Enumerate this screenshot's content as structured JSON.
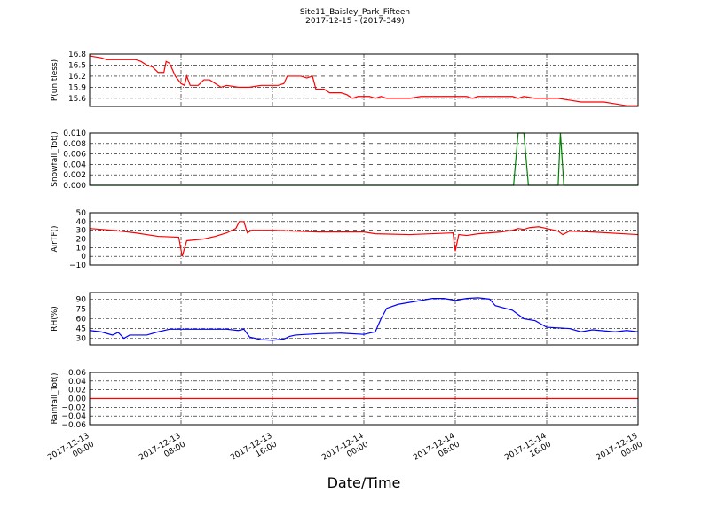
{
  "chart_data": [
    {
      "type": "line",
      "title": "Site11_Baisley_Park_Fifteen",
      "subtitle": "2017-12-15 - (2017-349)",
      "ylabel": "P(unitless)",
      "color": "#ff0000",
      "grid": true,
      "xlim": [
        "2017-12-13 00:00",
        "2017-12-15 00:00"
      ],
      "ylim": [
        15.38,
        16.8
      ],
      "yticks": [
        15.6,
        15.9,
        16.2,
        16.5,
        16.8
      ],
      "x": [
        "2017-12-13 00:00",
        "2017-12-13 01:00",
        "2017-12-13 01:30",
        "2017-12-13 04:00",
        "2017-12-13 04:30",
        "2017-12-13 05:00",
        "2017-12-13 05:30",
        "2017-12-13 06:00",
        "2017-12-13 06:30",
        "2017-12-13 06:42",
        "2017-12-13 07:00",
        "2017-12-13 07:30",
        "2017-12-13 08:00",
        "2017-12-13 08:18",
        "2017-12-13 08:30",
        "2017-12-13 08:48",
        "2017-12-13 09:30",
        "2017-12-13 10:00",
        "2017-12-13 10:30",
        "2017-12-13 11:00",
        "2017-12-13 11:30",
        "2017-12-13 12:00",
        "2017-12-13 13:00",
        "2017-12-13 14:00",
        "2017-12-13 15:00",
        "2017-12-13 16:30",
        "2017-12-13 17:00",
        "2017-12-13 17:18",
        "2017-12-13 18:30",
        "2017-12-13 19:00",
        "2017-12-13 19:30",
        "2017-12-13 19:48",
        "2017-12-13 20:30",
        "2017-12-13 21:00",
        "2017-12-13 22:00",
        "2017-12-13 22:30",
        "2017-12-13 23:00",
        "2017-12-13 23:30",
        "2017-12-14 00:30",
        "2017-12-14 01:00",
        "2017-12-14 01:30",
        "2017-12-14 02:00",
        "2017-12-14 04:00",
        "2017-12-14 05:00",
        "2017-12-14 09:00",
        "2017-12-14 09:30",
        "2017-12-14 10:00",
        "2017-12-14 13:00",
        "2017-12-14 13:30",
        "2017-12-14 14:00",
        "2017-12-14 15:00",
        "2017-12-14 17:00",
        "2017-12-14 18:00",
        "2017-12-14 19:00",
        "2017-12-14 21:00",
        "2017-12-14 22:00",
        "2017-12-14 23:00",
        "2017-12-15 00:00"
      ],
      "values": [
        16.75,
        16.7,
        16.65,
        16.65,
        16.6,
        16.5,
        16.45,
        16.3,
        16.3,
        16.6,
        16.55,
        16.2,
        16.0,
        15.95,
        16.2,
        15.95,
        15.95,
        16.1,
        16.1,
        16.0,
        15.9,
        15.95,
        15.9,
        15.9,
        15.95,
        15.95,
        16.0,
        16.2,
        16.2,
        16.15,
        16.2,
        15.85,
        15.85,
        15.75,
        15.75,
        15.7,
        15.6,
        15.65,
        15.65,
        15.6,
        15.65,
        15.6,
        15.6,
        15.65,
        15.65,
        15.6,
        15.65,
        15.65,
        15.6,
        15.65,
        15.6,
        15.6,
        15.55,
        15.5,
        15.5,
        15.45,
        15.4,
        15.4
      ]
    },
    {
      "type": "line",
      "ylabel": "Snowfall_Tot()",
      "color": "#008000",
      "grid": true,
      "xlim": [
        "2017-12-13 00:00",
        "2017-12-15 00:00"
      ],
      "ylim": [
        0,
        0.01
      ],
      "yticks": [
        {
          "value": 0,
          "label": "0.000"
        },
        {
          "value": 0.002,
          "label": "0.002"
        },
        {
          "value": 0.004,
          "label": "0.004"
        },
        {
          "value": 0.006,
          "label": "0.006"
        },
        {
          "value": 0.008,
          "label": "0.008"
        },
        {
          "value": 0.01,
          "label": "0.010"
        }
      ],
      "x": [
        "2017-12-13 00:00",
        "2017-12-14 13:06",
        "2017-12-14 13:30",
        "2017-12-14 14:00",
        "2017-12-14 14:24",
        "2017-12-14 17:00",
        "2017-12-14 17:12",
        "2017-12-14 17:30",
        "2017-12-15 00:00"
      ],
      "values": [
        0,
        0,
        0.01,
        0.01,
        0,
        0,
        0.01,
        0,
        0
      ]
    },
    {
      "type": "line",
      "ylabel": "AirTF()",
      "color": "#ff0000",
      "grid": true,
      "xlim": [
        "2017-12-13 00:00",
        "2017-12-15 00:00"
      ],
      "ylim": [
        -10,
        50
      ],
      "yticks": [
        {
          "value": -10,
          "label": "−10"
        },
        0,
        10,
        20,
        30,
        40,
        50
      ],
      "x": [
        "2017-12-13 00:00",
        "2017-12-13 02:00",
        "2017-12-13 04:00",
        "2017-12-13 06:00",
        "2017-12-13 07:48",
        "2017-12-13 08:06",
        "2017-12-13 08:30",
        "2017-12-13 10:00",
        "2017-12-13 11:00",
        "2017-12-13 12:00",
        "2017-12-13 12:48",
        "2017-12-13 13:06",
        "2017-12-13 13:30",
        "2017-12-13 13:48",
        "2017-12-13 14:12",
        "2017-12-13 16:00",
        "2017-12-13 18:00",
        "2017-12-13 20:00",
        "2017-12-14 00:00",
        "2017-12-14 01:00",
        "2017-12-14 04:00",
        "2017-12-14 07:48",
        "2017-12-14 08:00",
        "2017-12-14 08:18",
        "2017-12-14 09:00",
        "2017-12-14 10:00",
        "2017-12-14 12:00",
        "2017-12-14 13:00",
        "2017-12-14 13:30",
        "2017-12-14 14:00",
        "2017-12-14 14:30",
        "2017-12-14 15:18",
        "2017-12-14 16:00",
        "2017-12-14 17:00",
        "2017-12-14 17:24",
        "2017-12-14 18:00",
        "2017-12-14 20:00",
        "2017-12-15 00:00"
      ],
      "values": [
        32,
        30,
        27,
        23,
        22,
        0,
        18,
        20,
        23,
        27,
        32,
        40,
        40,
        27,
        30,
        30,
        29,
        28,
        28,
        26,
        25,
        27,
        6,
        25,
        24,
        26,
        28,
        30,
        32,
        31,
        33,
        34,
        32,
        29,
        25,
        29,
        28,
        25
      ]
    },
    {
      "type": "line",
      "ylabel": "RH(%)",
      "color": "#0000ff",
      "grid": true,
      "xlim": [
        "2017-12-13 00:00",
        "2017-12-15 00:00"
      ],
      "ylim": [
        20,
        100
      ],
      "yticks": [
        30,
        45,
        60,
        75,
        90
      ],
      "x": [
        "2017-12-13 00:00",
        "2017-12-13 01:00",
        "2017-12-13 02:00",
        "2017-12-13 02:30",
        "2017-12-13 03:00",
        "2017-12-13 03:30",
        "2017-12-13 05:00",
        "2017-12-13 06:00",
        "2017-12-13 07:00",
        "2017-12-13 08:00",
        "2017-12-13 10:00",
        "2017-12-13 12:00",
        "2017-12-13 13:00",
        "2017-12-13 13:30",
        "2017-12-13 14:00",
        "2017-12-13 15:00",
        "2017-12-13 16:00",
        "2017-12-13 17:00",
        "2017-12-13 17:30",
        "2017-12-13 18:00",
        "2017-12-13 20:00",
        "2017-12-13 22:00",
        "2017-12-14 00:00",
        "2017-12-14 01:00",
        "2017-12-14 01:30",
        "2017-12-14 02:00",
        "2017-12-14 03:00",
        "2017-12-14 05:00",
        "2017-12-14 06:00",
        "2017-12-14 07:00",
        "2017-12-14 08:00",
        "2017-12-14 09:00",
        "2017-12-14 10:00",
        "2017-12-14 11:00",
        "2017-12-14 11:30",
        "2017-12-14 13:00",
        "2017-12-14 14:00",
        "2017-12-14 15:00",
        "2017-12-14 16:00",
        "2017-12-14 18:00",
        "2017-12-14 19:00",
        "2017-12-14 20:00",
        "2017-12-14 22:00",
        "2017-12-14 23:00",
        "2017-12-15 00:00"
      ],
      "values": [
        42,
        40,
        35,
        39,
        30,
        35,
        35,
        40,
        44,
        44,
        44,
        44,
        42,
        44,
        32,
        28,
        27,
        29,
        33,
        35,
        37,
        38,
        36,
        40,
        60,
        76,
        82,
        88,
        91,
        91,
        88,
        91,
        92,
        90,
        80,
        73,
        60,
        57,
        47,
        45,
        40,
        43,
        40,
        42,
        40
      ]
    },
    {
      "type": "line",
      "ylabel": "Rainfall_Tot()",
      "xlabel": "Date/Time",
      "color": "#ff0000",
      "grid": true,
      "xlim": [
        "2017-12-13 00:00",
        "2017-12-15 00:00"
      ],
      "ylim": [
        -0.06,
        0.06
      ],
      "yticks": [
        {
          "value": -0.06,
          "label": "−0.06"
        },
        {
          "value": -0.04,
          "label": "−0.04"
        },
        {
          "value": -0.02,
          "label": "−0.02"
        },
        {
          "value": 0,
          "label": "0.00"
        },
        0.02,
        0.04,
        0.06
      ],
      "xticks": [
        {
          "value": "2017-12-13 00:00",
          "label": [
            "2017-12-13",
            "00:00"
          ]
        },
        {
          "value": "2017-12-13 08:00",
          "label": [
            "2017-12-13",
            "08:00"
          ]
        },
        {
          "value": "2017-12-13 16:00",
          "label": [
            "2017-12-13",
            "16:00"
          ]
        },
        {
          "value": "2017-12-14 00:00",
          "label": [
            "2017-12-14",
            "00:00"
          ]
        },
        {
          "value": "2017-12-14 08:00",
          "label": [
            "2017-12-14",
            "08:00"
          ]
        },
        {
          "value": "2017-12-14 16:00",
          "label": [
            "2017-12-14",
            "16:00"
          ]
        },
        {
          "value": "2017-12-15 00:00",
          "label": [
            "2017-12-15",
            "00:00"
          ]
        }
      ],
      "x": [
        "2017-12-13 00:00",
        "2017-12-15 00:00"
      ],
      "values": [
        0,
        0
      ]
    }
  ]
}
